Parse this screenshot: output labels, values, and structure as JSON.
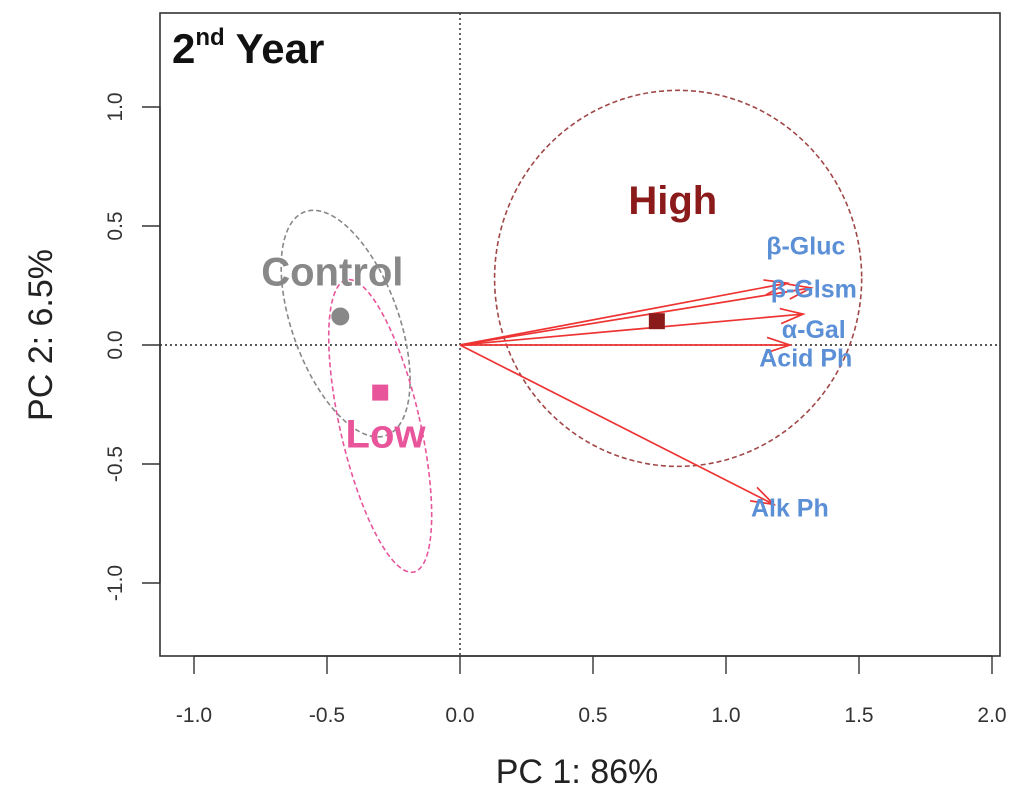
{
  "chart_data": {
    "type": "scatter",
    "subtype": "pca-biplot",
    "title": "2",
    "title_superscript": "nd",
    "title_suffix": " Year",
    "xlabel": "PC 1:  86%",
    "ylabel": "PC 2:  6.5%",
    "xlim": [
      -1.1,
      2.0
    ],
    "ylim": [
      -1.3,
      1.4
    ],
    "xticks": [
      -1.0,
      -0.5,
      0.0,
      0.5,
      1.0,
      1.5,
      2.0
    ],
    "xtick_labels": [
      "-1.0",
      "-0.5",
      "0.0",
      "0.5",
      "1.0",
      "1.5",
      "2.0"
    ],
    "yticks": [
      -1.0,
      -0.5,
      0.0,
      0.5,
      1.0
    ],
    "ytick_labels": [
      "-1.0",
      "-0.5",
      "0.0",
      "0.5",
      "1.0"
    ],
    "reference_lines": {
      "x": 0,
      "y": 0
    },
    "groups": [
      {
        "name": "Control",
        "label": "Control",
        "color": "#888888",
        "marker": "circle",
        "centroid": [
          -0.45,
          0.12
        ],
        "ellipse": {
          "center": [
            -0.43,
            0.09
          ],
          "rx": 0.2,
          "ry": 0.5,
          "angle_deg": -20
        },
        "label_pos": [
          -0.48,
          0.25
        ]
      },
      {
        "name": "Low",
        "label": "Low",
        "color": "#e8559b",
        "marker": "square",
        "centroid": [
          -0.3,
          -0.2
        ],
        "ellipse": {
          "center": [
            -0.3,
            -0.34
          ],
          "rx": 0.15,
          "ry": 0.63,
          "angle_deg": -13
        },
        "label_pos": [
          -0.28,
          -0.43
        ]
      },
      {
        "name": "High",
        "label": "High",
        "color": "#8b1a1a",
        "ellipse_color": "#a04848",
        "marker": "square",
        "centroid": [
          0.74,
          0.1
        ],
        "ellipse": {
          "center": [
            0.82,
            0.28
          ],
          "rx": 0.69,
          "ry": 0.79,
          "angle_deg": 0
        },
        "label_pos": [
          0.8,
          0.55
        ]
      }
    ],
    "loadings": [
      {
        "label": "β-Gluc",
        "x": 1.23,
        "y": 0.26,
        "label_pos": [
          1.3,
          0.38
        ]
      },
      {
        "label": "β-Glsm",
        "x": 1.32,
        "y": 0.24,
        "label_pos": [
          1.33,
          0.2
        ]
      },
      {
        "label": "α-Gal",
        "x": 1.29,
        "y": 0.13,
        "label_pos": [
          1.33,
          0.03
        ]
      },
      {
        "label": "Acid Ph",
        "x": 1.24,
        "y": 0.0,
        "label_pos": [
          1.3,
          -0.09
        ]
      },
      {
        "label": "Alk Ph",
        "x": 1.18,
        "y": -0.67,
        "label_pos": [
          1.24,
          -0.72
        ]
      }
    ],
    "loading_color": "#ee3333",
    "loading_label_color": "#5b8fd6"
  }
}
